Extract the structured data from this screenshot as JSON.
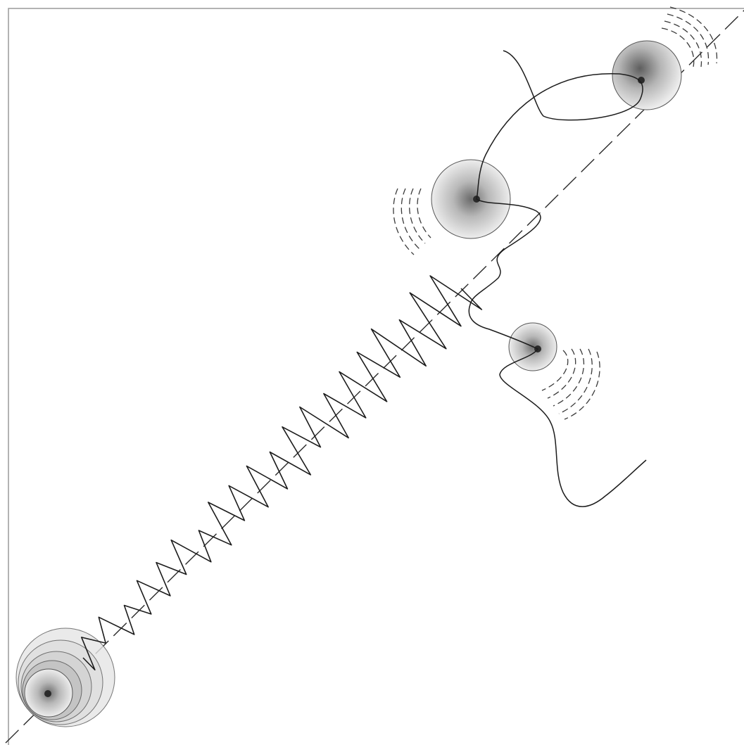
{
  "diagram": {
    "labels": [],
    "colors": {
      "background": "#ffffff",
      "frame": "#9a9a9a",
      "ink": "#1c1c1c",
      "axis": "#2a2a2a",
      "halo_core": "#6b6b6b",
      "halo_edge": "#ededed",
      "dashed_arcs": "#3a3a3a",
      "nucleus": "#2b2b2b"
    },
    "elements": [
      "diagonal-dashed-axis",
      "source-body-concentric-halos",
      "zigzag-wave-train",
      "upper-body",
      "middle-body",
      "lower-body",
      "curved-trajectory",
      "radiating-dashed-arcs"
    ]
  }
}
